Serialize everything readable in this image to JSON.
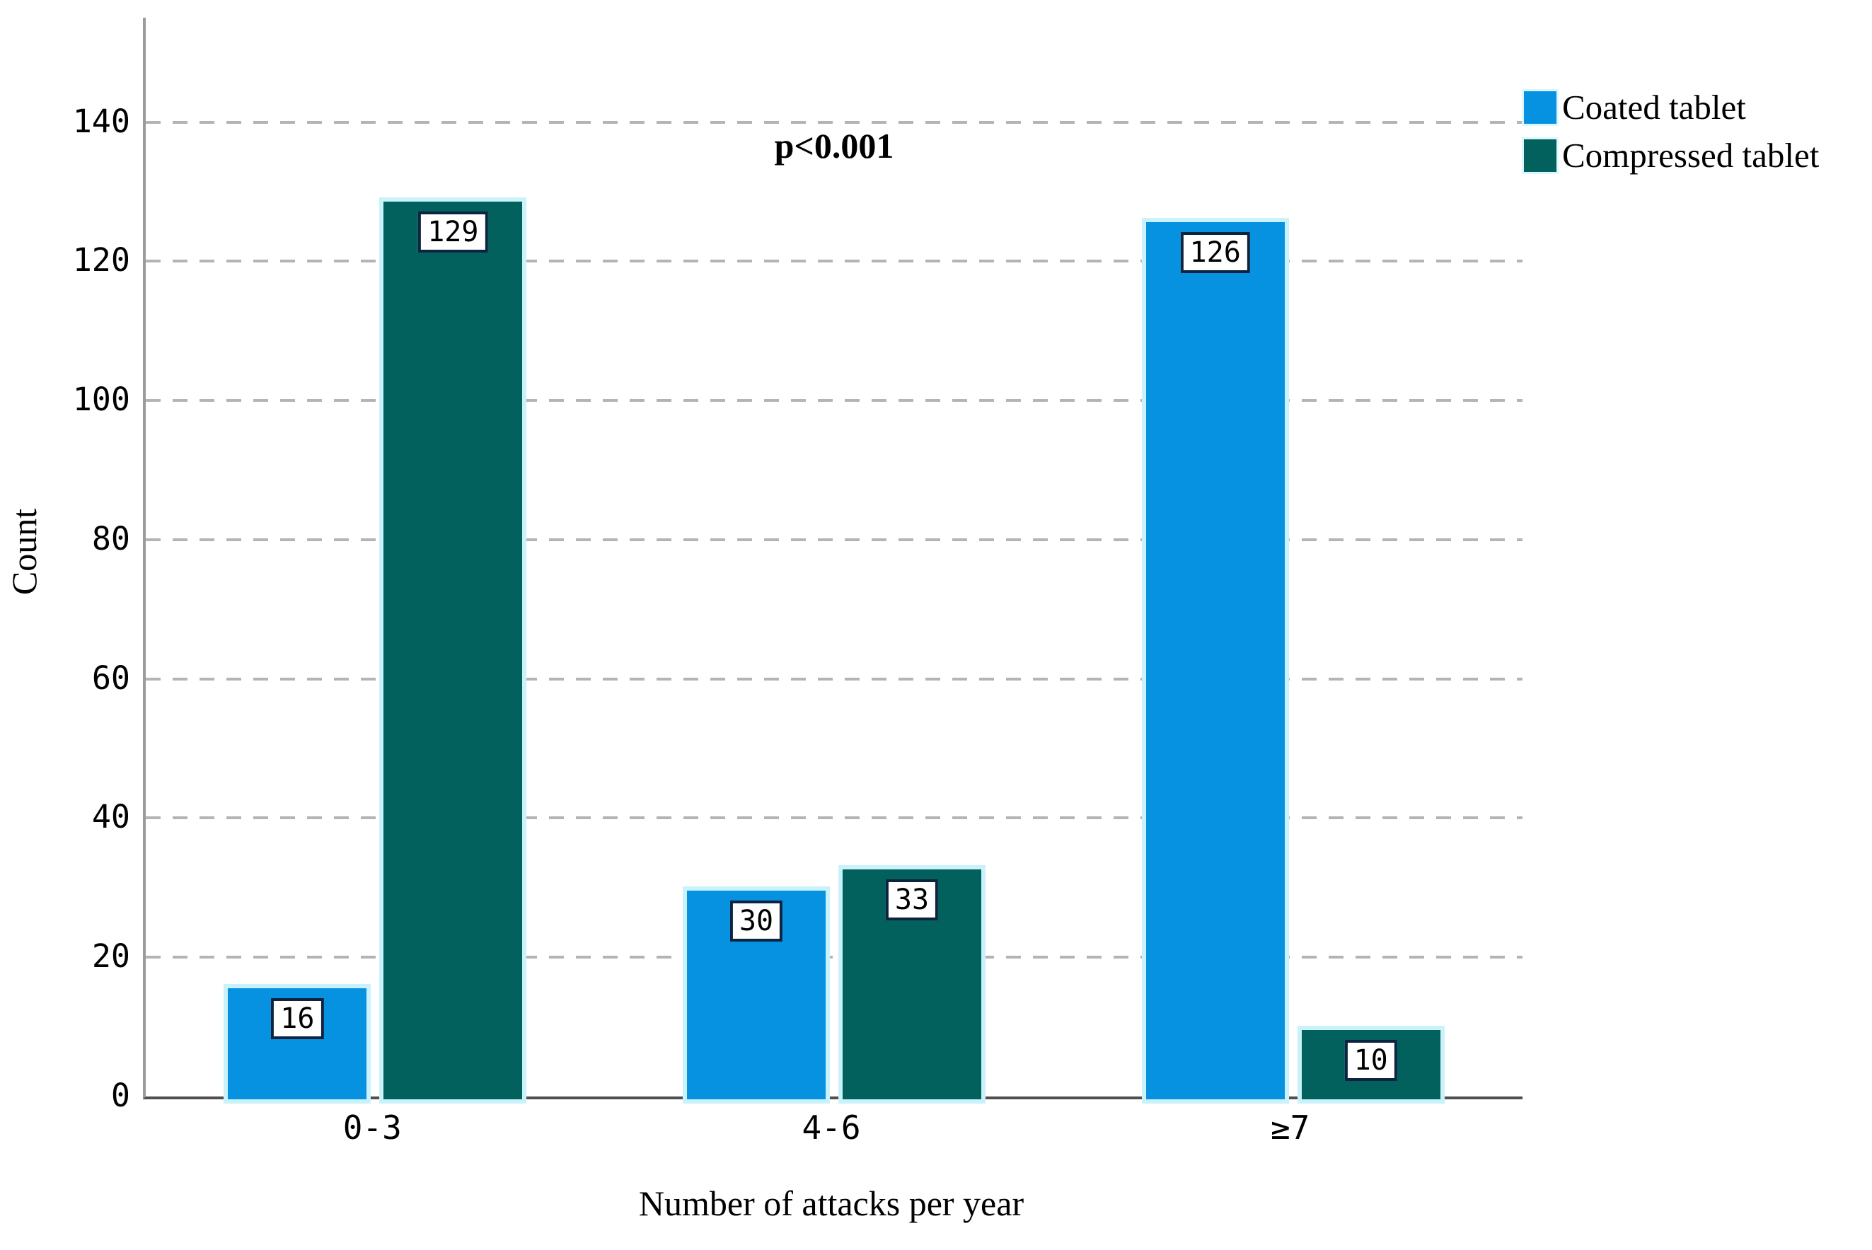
{
  "chart_data": {
    "type": "bar",
    "title": "",
    "xlabel": "Number of attacks per year",
    "ylabel": "Count",
    "annotation": "p<0.001",
    "categories": [
      "0-3",
      "4-6",
      "≥7"
    ],
    "series": [
      {
        "name": "Coated tablet",
        "color": "#0791e1",
        "values": [
          16,
          30,
          126
        ]
      },
      {
        "name": "Compressed tablet",
        "color": "#02605d",
        "values": [
          129,
          33,
          10
        ]
      }
    ],
    "bar_value_labels": [
      {
        "category": "0-3",
        "coated": 16,
        "compressed": 129
      },
      {
        "category": "4-6",
        "coated": 30,
        "compressed": 33
      },
      {
        "category": "≥7",
        "coated": 126,
        "compressed": 10
      }
    ],
    "ylim": [
      0,
      155
    ],
    "yticks": [
      0,
      20,
      40,
      60,
      80,
      100,
      120,
      140
    ],
    "grid": "horizontal-dashed",
    "legend_position": "top-right",
    "colors": {
      "grid": "#b4b4b4",
      "y_axis": "#9b9b9b",
      "x_axis": "#4f4f4f",
      "bar_halo": "#c9f2fa",
      "value_box_bg": "#ffffff",
      "value_box_border": "#0d2440",
      "text": "#000000"
    }
  }
}
